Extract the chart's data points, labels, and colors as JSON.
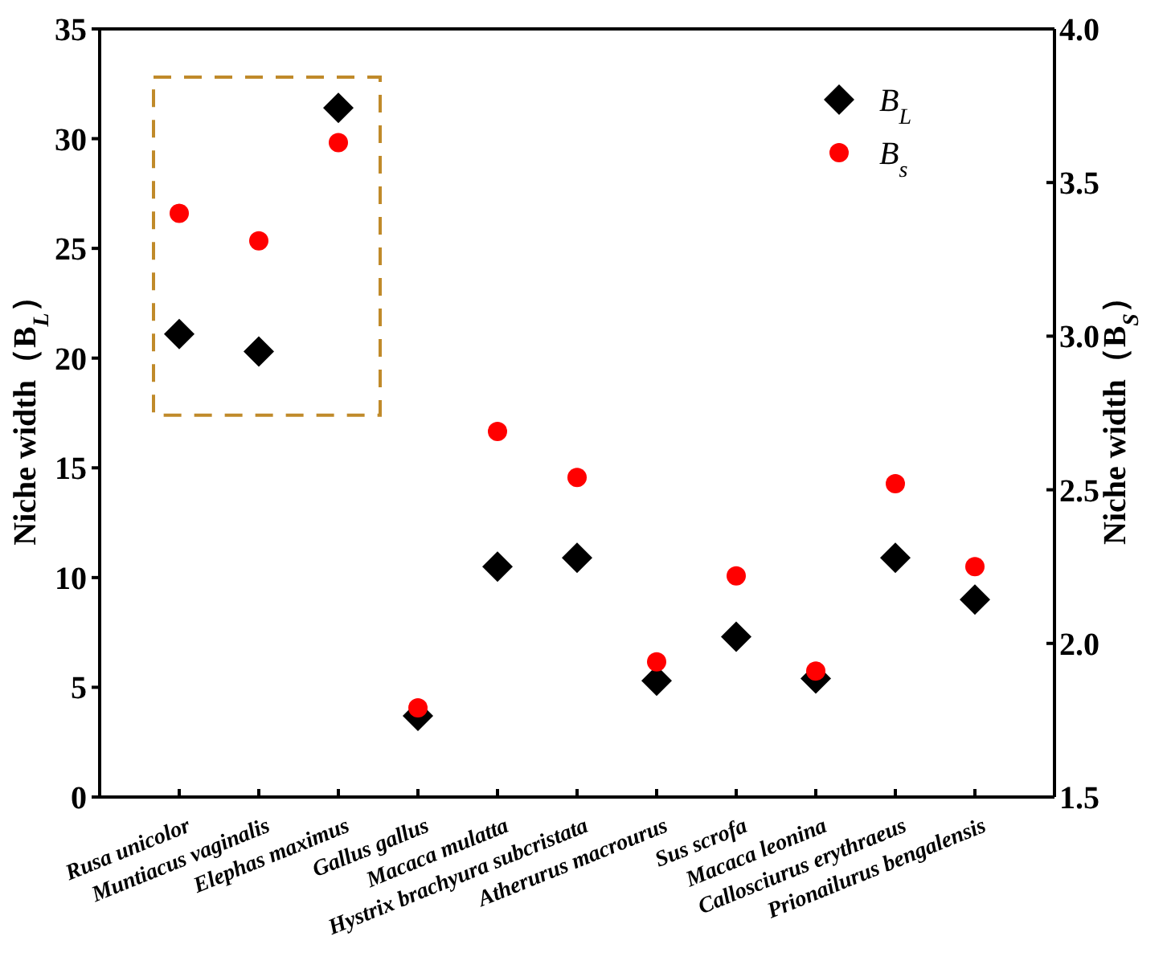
{
  "chart_data": {
    "type": "scatter",
    "xlabel": null,
    "ylabel": "Niche width（B$_{L}$）",
    "y2label": "Niche width（B$_{S}$）",
    "categories": [
      "Rusa unicolor",
      "Muntiacus vaginalis",
      "Elephas maximus",
      "Gallus gallus",
      "Macaca mulatta",
      "Hystrix brachyura subcristata",
      "Atherurus macrourus",
      "Sus scrofa",
      "Macaca leonina",
      "Callosciurus erythraeus",
      "Prionailurus bengalensis"
    ],
    "series": [
      {
        "name": "B$_{L}$",
        "color": "#000000",
        "marker": "diamond",
        "axis": "y",
        "values": [
          21.1,
          20.3,
          31.4,
          3.7,
          10.5,
          10.9,
          5.3,
          7.3,
          5.4,
          10.9,
          9.0
        ]
      },
      {
        "name": "B$_{s}$",
        "color": "#ff0000",
        "marker": "circle",
        "axis": "y2",
        "values": [
          3.4,
          3.31,
          3.63,
          1.79,
          2.69,
          2.54,
          1.94,
          2.22,
          1.91,
          2.52,
          2.25
        ]
      }
    ],
    "ylim": [
      0,
      35
    ],
    "yticks": [
      0,
      5,
      10,
      15,
      20,
      25,
      30,
      35
    ],
    "y2lim": [
      1.5,
      4.0
    ],
    "y2ticks": [
      {
        "value": 1.5,
        "label": "1.5"
      },
      {
        "value": 2.0,
        "label": "2.0"
      },
      {
        "value": 2.5,
        "label": "2.5"
      },
      {
        "value": 3.0,
        "label": "3.0"
      },
      {
        "value": 3.5,
        "label": "3.5"
      },
      {
        "value": 4.0,
        "label": "4.0"
      }
    ],
    "legend": "top right"
  }
}
